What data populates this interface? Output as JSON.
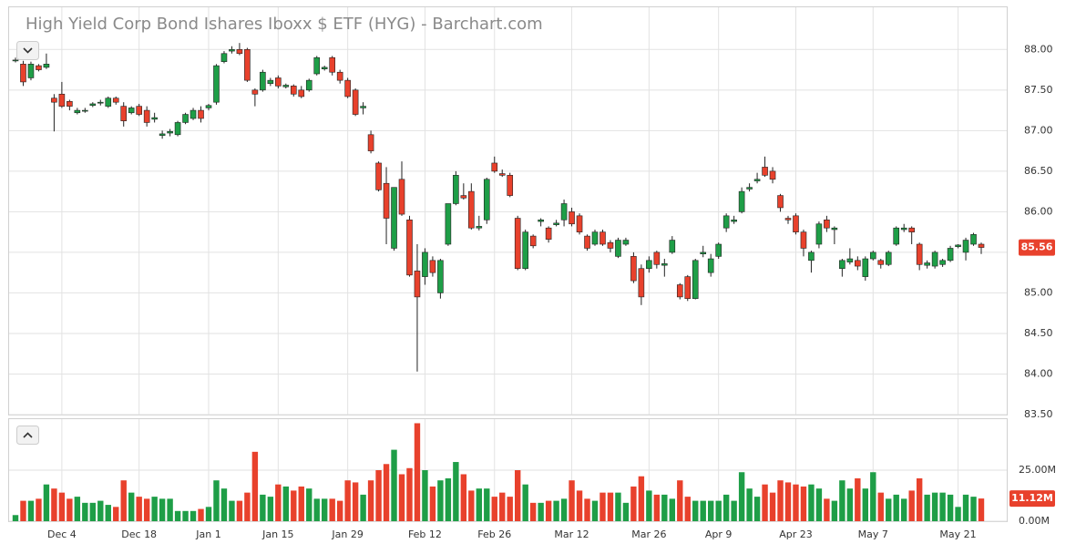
{
  "chart_data": {
    "type": "candlestick",
    "title": "High Yield Corp Bond Ishares Iboxx $ ETF (HYG) - Barchart.com",
    "categories": [
      null,
      null,
      null,
      null,
      null,
      null,
      "Dec 4",
      null,
      null,
      null,
      null,
      null,
      null,
      null,
      null,
      null,
      "Dec 18",
      null,
      null,
      null,
      null,
      null,
      null,
      null,
      null,
      "Jan 1",
      null,
      null,
      null,
      null,
      null,
      null,
      null,
      null,
      "Jan 15",
      null,
      null,
      null,
      null,
      null,
      null,
      null,
      null,
      "Jan 29",
      null,
      null,
      null,
      null,
      null,
      null,
      null,
      null,
      null,
      "Feb 12",
      null,
      null,
      null,
      null,
      null,
      null,
      null,
      null,
      "Feb 26",
      null,
      null,
      null,
      null,
      null,
      null,
      null,
      null,
      null,
      "Mar 12",
      null,
      null,
      null,
      null,
      null,
      null,
      null,
      null,
      null,
      "Mar 26",
      null,
      null,
      null,
      null,
      null,
      null,
      null,
      null,
      "Apr 9",
      null,
      null,
      null,
      null,
      null,
      null,
      null,
      null,
      null,
      "Apr 23",
      null,
      null,
      null,
      null,
      null,
      null,
      null,
      null,
      null,
      "May 7",
      null,
      null,
      null,
      null,
      null,
      null,
      null,
      null,
      null,
      null,
      "May 21",
      null,
      null,
      null
    ],
    "ohlc": [
      [
        87.86,
        87.9,
        87.84,
        87.87
      ],
      [
        87.82,
        87.86,
        87.55,
        87.6
      ],
      [
        87.65,
        87.85,
        87.62,
        87.82
      ],
      [
        87.8,
        87.82,
        87.73,
        87.75
      ],
      [
        87.78,
        87.95,
        87.76,
        87.82
      ],
      [
        87.4,
        87.45,
        86.99,
        87.35
      ],
      [
        87.45,
        87.6,
        87.28,
        87.3
      ],
      [
        87.36,
        87.38,
        87.25,
        87.3
      ],
      [
        87.22,
        87.28,
        87.2,
        87.25
      ],
      [
        87.24,
        87.28,
        87.22,
        87.25
      ],
      [
        87.31,
        87.35,
        87.29,
        87.33
      ],
      [
        87.34,
        87.38,
        87.31,
        87.35
      ],
      [
        87.3,
        87.42,
        87.28,
        87.4
      ],
      [
        87.4,
        87.42,
        87.32,
        87.35
      ],
      [
        87.3,
        87.35,
        87.05,
        87.12
      ],
      [
        87.22,
        87.3,
        87.2,
        87.28
      ],
      [
        87.3,
        87.33,
        87.18,
        87.2
      ],
      [
        87.25,
        87.3,
        87.05,
        87.1
      ],
      [
        87.14,
        87.22,
        87.1,
        87.16
      ],
      [
        86.94,
        87.0,
        86.9,
        86.96
      ],
      [
        86.97,
        87.02,
        86.93,
        86.99
      ],
      [
        86.95,
        87.12,
        86.93,
        87.1
      ],
      [
        87.1,
        87.22,
        87.08,
        87.2
      ],
      [
        87.15,
        87.28,
        87.13,
        87.25
      ],
      [
        87.25,
        87.3,
        87.1,
        87.15
      ],
      [
        87.28,
        87.33,
        87.25,
        87.31
      ],
      [
        87.35,
        87.82,
        87.32,
        87.8
      ],
      [
        87.85,
        87.98,
        87.83,
        87.95
      ],
      [
        87.98,
        88.04,
        87.95,
        88.0
      ],
      [
        88.0,
        88.08,
        87.93,
        87.95
      ],
      [
        88.0,
        88.02,
        87.6,
        87.62
      ],
      [
        87.5,
        87.52,
        87.3,
        87.45
      ],
      [
        87.5,
        87.75,
        87.48,
        87.72
      ],
      [
        87.58,
        87.65,
        87.55,
        87.62
      ],
      [
        87.65,
        87.68,
        87.52,
        87.55
      ],
      [
        87.54,
        87.58,
        87.52,
        87.56
      ],
      [
        87.55,
        87.57,
        87.42,
        87.45
      ],
      [
        87.5,
        87.55,
        87.4,
        87.42
      ],
      [
        87.5,
        87.64,
        87.48,
        87.62
      ],
      [
        87.7,
        87.92,
        87.68,
        87.9
      ],
      [
        87.76,
        87.8,
        87.74,
        87.78
      ],
      [
        87.9,
        87.92,
        87.68,
        87.72
      ],
      [
        87.72,
        87.75,
        87.58,
        87.62
      ],
      [
        87.62,
        87.65,
        87.4,
        87.42
      ],
      [
        87.5,
        87.52,
        87.18,
        87.2
      ],
      [
        87.28,
        87.35,
        87.2,
        87.3
      ],
      [
        86.95,
        87.0,
        86.72,
        86.75
      ],
      [
        86.6,
        86.62,
        86.25,
        86.27
      ],
      [
        86.35,
        86.55,
        85.6,
        85.92
      ],
      [
        85.55,
        86.3,
        85.52,
        86.3
      ],
      [
        86.4,
        86.62,
        85.95,
        85.97
      ],
      [
        85.9,
        85.95,
        85.2,
        85.22
      ],
      [
        85.27,
        85.6,
        84.03,
        84.95
      ],
      [
        85.2,
        85.55,
        85.1,
        85.5
      ],
      [
        85.4,
        85.45,
        85.2,
        85.25
      ],
      [
        85.0,
        85.42,
        84.93,
        85.4
      ],
      [
        85.6,
        86.1,
        85.58,
        86.1
      ],
      [
        86.1,
        86.5,
        86.08,
        86.45
      ],
      [
        86.2,
        86.35,
        86.15,
        86.17
      ],
      [
        86.25,
        86.35,
        85.78,
        85.8
      ],
      [
        85.8,
        85.95,
        85.77,
        85.82
      ],
      [
        85.9,
        86.42,
        85.85,
        86.4
      ],
      [
        86.6,
        86.68,
        86.48,
        86.5
      ],
      [
        86.47,
        86.52,
        86.43,
        86.45
      ],
      [
        86.45,
        86.48,
        86.18,
        86.2
      ],
      [
        85.92,
        85.95,
        85.28,
        85.3
      ],
      [
        85.3,
        85.78,
        85.28,
        85.75
      ],
      [
        85.7,
        85.72,
        85.55,
        85.58
      ],
      [
        85.88,
        85.92,
        85.82,
        85.9
      ],
      [
        85.8,
        85.82,
        85.62,
        85.66
      ],
      [
        85.84,
        85.9,
        85.82,
        85.86
      ],
      [
        85.9,
        86.15,
        85.82,
        86.1
      ],
      [
        86.0,
        86.05,
        85.82,
        85.85
      ],
      [
        85.95,
        85.98,
        85.72,
        85.75
      ],
      [
        85.7,
        85.72,
        85.52,
        85.55
      ],
      [
        85.6,
        85.78,
        85.58,
        85.75
      ],
      [
        85.75,
        85.78,
        85.58,
        85.6
      ],
      [
        85.62,
        85.65,
        85.5,
        85.55
      ],
      [
        85.45,
        85.68,
        85.43,
        85.65
      ],
      [
        85.6,
        85.68,
        85.58,
        85.65
      ],
      [
        85.45,
        85.5,
        85.12,
        85.15
      ],
      [
        85.3,
        85.35,
        84.85,
        84.95
      ],
      [
        85.3,
        85.45,
        85.25,
        85.4
      ],
      [
        85.5,
        85.52,
        85.3,
        85.35
      ],
      [
        85.34,
        85.42,
        85.2,
        85.36
      ],
      [
        85.5,
        85.7,
        85.48,
        85.65
      ],
      [
        85.1,
        85.12,
        84.92,
        84.95
      ],
      [
        85.2,
        85.22,
        84.9,
        84.93
      ],
      [
        84.93,
        85.42,
        84.92,
        85.4
      ],
      [
        85.48,
        85.58,
        85.44,
        85.5
      ],
      [
        85.25,
        85.48,
        85.2,
        85.42
      ],
      [
        85.45,
        85.62,
        85.42,
        85.6
      ],
      [
        85.8,
        85.98,
        85.75,
        85.95
      ],
      [
        85.88,
        85.95,
        85.85,
        85.9
      ],
      [
        86.0,
        86.3,
        85.98,
        86.25
      ],
      [
        86.28,
        86.35,
        86.25,
        86.3
      ],
      [
        86.38,
        86.48,
        86.35,
        86.4
      ],
      [
        86.55,
        86.68,
        86.43,
        86.45
      ],
      [
        86.5,
        86.55,
        86.35,
        86.4
      ],
      [
        86.2,
        86.22,
        86.0,
        86.05
      ],
      [
        85.92,
        85.95,
        85.85,
        85.9
      ],
      [
        85.95,
        85.98,
        85.72,
        85.75
      ],
      [
        85.75,
        85.78,
        85.45,
        85.55
      ],
      [
        85.4,
        85.52,
        85.25,
        85.5
      ],
      [
        85.6,
        85.88,
        85.55,
        85.85
      ],
      [
        85.9,
        85.95,
        85.75,
        85.8
      ],
      [
        85.78,
        85.82,
        85.6,
        85.8
      ],
      [
        85.3,
        85.42,
        85.2,
        85.4
      ],
      [
        85.38,
        85.55,
        85.35,
        85.42
      ],
      [
        85.4,
        85.45,
        85.28,
        85.33
      ],
      [
        85.2,
        85.45,
        85.15,
        85.42
      ],
      [
        85.42,
        85.52,
        85.4,
        85.5
      ],
      [
        85.4,
        85.42,
        85.3,
        85.35
      ],
      [
        85.35,
        85.52,
        85.33,
        85.5
      ],
      [
        85.6,
        85.82,
        85.58,
        85.8
      ],
      [
        85.78,
        85.85,
        85.75,
        85.8
      ],
      [
        85.8,
        85.82,
        85.6,
        85.75
      ],
      [
        85.6,
        85.62,
        85.28,
        85.35
      ],
      [
        85.34,
        85.4,
        85.3,
        85.37
      ],
      [
        85.33,
        85.52,
        85.3,
        85.5
      ],
      [
        85.35,
        85.42,
        85.32,
        85.4
      ],
      [
        85.4,
        85.58,
        85.38,
        85.55
      ],
      [
        85.57,
        85.6,
        85.55,
        85.59
      ],
      [
        85.5,
        85.68,
        85.4,
        85.65
      ],
      [
        85.6,
        85.74,
        85.58,
        85.72
      ],
      [
        85.6,
        85.62,
        85.48,
        85.56
      ]
    ],
    "close_label": "85.56",
    "volume": [
      3,
      10,
      10,
      11,
      18,
      16,
      14,
      11,
      12,
      9,
      9,
      10,
      8,
      7,
      20,
      14,
      12,
      11,
      12,
      11,
      11,
      5,
      5,
      5,
      6,
      7,
      20,
      16,
      10,
      10,
      14,
      34,
      13,
      12,
      18,
      17,
      15,
      17,
      16,
      11,
      11,
      11,
      10,
      20,
      19,
      13,
      20,
      25,
      28,
      35,
      23,
      26,
      48,
      25,
      17,
      20,
      21,
      29,
      23,
      15,
      16,
      16,
      12,
      14,
      12,
      25,
      18,
      9,
      9,
      10,
      10,
      11,
      20,
      15,
      11,
      10,
      14,
      14,
      14,
      9,
      17,
      22,
      15,
      13,
      13,
      11,
      20,
      12,
      10,
      10,
      10,
      10,
      13,
      10,
      24,
      16,
      12,
      18,
      14,
      20,
      19,
      18,
      17,
      18,
      16,
      11,
      10,
      20,
      16,
      21,
      16,
      24,
      14,
      11,
      13,
      11,
      15,
      21,
      13,
      14,
      14,
      13,
      7,
      13,
      12,
      11.12
    ],
    "volume_label": "11.12M",
    "up_color": "#1e9e47",
    "down_color": "#e8412c",
    "ylim": [
      83.5,
      88.52
    ],
    "yticks": [
      {
        "value": 83.5,
        "label": "83.50"
      },
      {
        "value": 84,
        "label": "84.00"
      },
      {
        "value": 84.5,
        "label": "84.50"
      },
      {
        "value": 85,
        "label": "85.00"
      },
      {
        "value": 85.5,
        "label": "85.50"
      },
      {
        "value": 86,
        "label": "86.00"
      },
      {
        "value": 86.5,
        "label": "86.50"
      },
      {
        "value": 87,
        "label": "87.00"
      },
      {
        "value": 87.5,
        "label": "87.50"
      },
      {
        "value": 88,
        "label": "88.00"
      }
    ],
    "volume_ylim": [
      0,
      50
    ],
    "volume_yticks": [
      {
        "value": 0,
        "label": "0.00M"
      },
      {
        "value": 25,
        "label": "25.00M"
      }
    ],
    "grid": true
  }
}
